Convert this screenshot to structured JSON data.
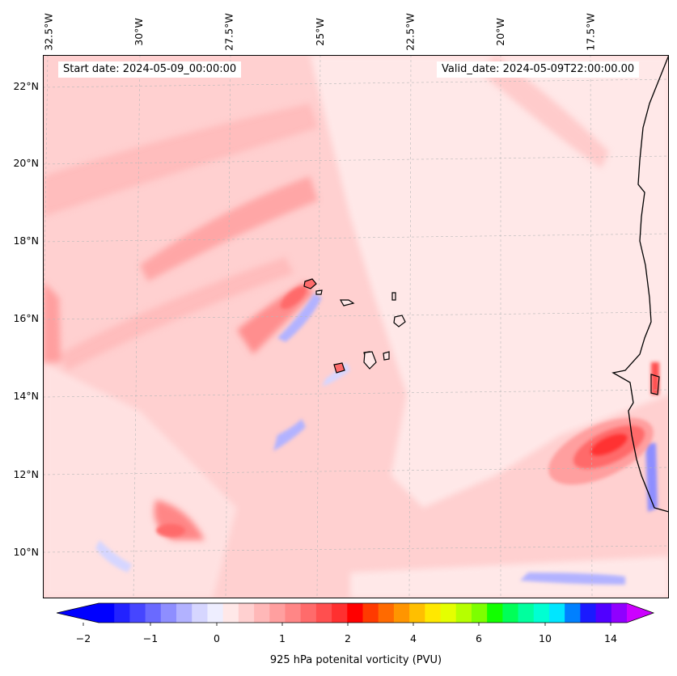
{
  "header": {
    "start_date": "Start date: 2024-05-09_00:00:00",
    "valid_date": "Valid_date: 2024-05-09T22:00:00.00"
  },
  "longitude_labels": [
    "32.5°W",
    "30°W",
    "27.5°W",
    "25°W",
    "22.5°W",
    "20°W",
    "17.5°W"
  ],
  "latitude_labels": [
    "22°N",
    "20°N",
    "18°N",
    "16°N",
    "14°N",
    "12°N",
    "10°N"
  ],
  "colorbar": {
    "label": "925 hPa potenital vorticity (PVU)",
    "tick_labels": [
      "−2",
      "−1",
      "0",
      "1",
      "2",
      "4",
      "6",
      "10",
      "14"
    ],
    "colors": [
      "#0000ff",
      "#2222ff",
      "#4646ff",
      "#6a6aff",
      "#8e8eff",
      "#b2b2ff",
      "#d6d6ff",
      "#eeeeff",
      "#ffe8e8",
      "#ffd0d0",
      "#ffb8b8",
      "#ff9f9f",
      "#ff8686",
      "#ff6b6b",
      "#ff4f4f",
      "#ff3030",
      "#ff0000",
      "#ff3a00",
      "#ff6a00",
      "#ff9500",
      "#ffbf00",
      "#ffe800",
      "#e5ff00",
      "#b6ff00",
      "#7dff00",
      "#12ff00",
      "#00ff58",
      "#00ff9e",
      "#00ffd2",
      "#00e6ff",
      "#0080ff",
      "#1a1aff",
      "#5000ff",
      "#9000ff"
    ],
    "extend_colors": {
      "min": "#0000ff",
      "max": "#cc00ff"
    }
  }
}
